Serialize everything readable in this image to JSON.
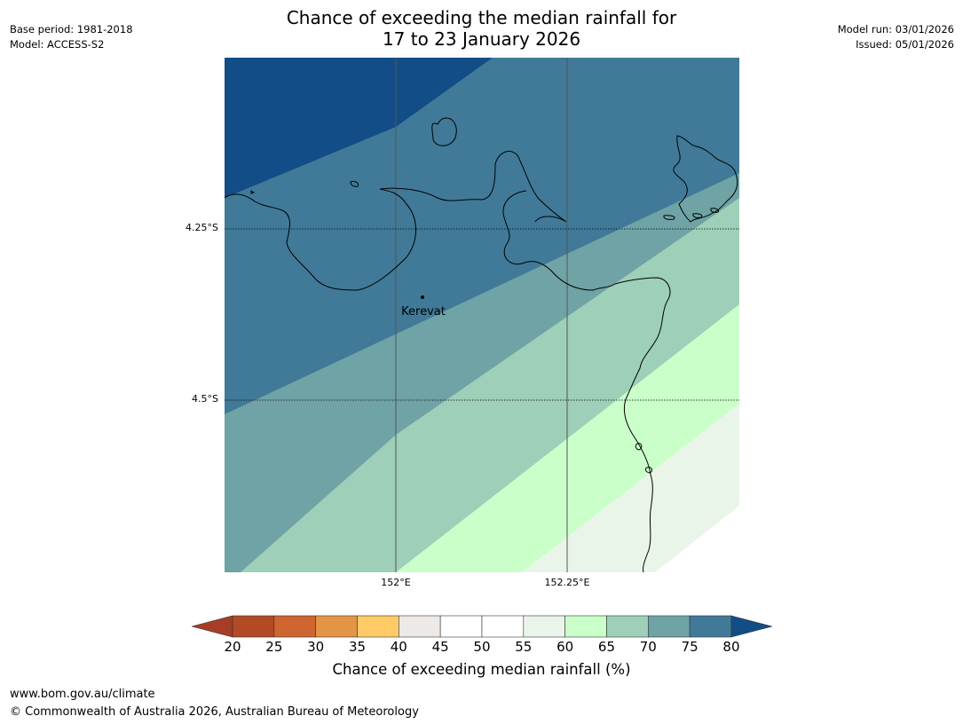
{
  "header": {
    "title_line1": "Chance of exceeding the median rainfall for",
    "title_line2": "17 to 23 January 2026",
    "base_period": "Base period: 1981-2018",
    "model": "Model: ACCESS-S2",
    "model_run": "Model run: 03/01/2026",
    "issued": "Issued: 05/01/2026"
  },
  "map": {
    "place_label": "Kerevat",
    "lat_labels": [
      "4.25°S",
      "4.5°S"
    ],
    "lon_labels": [
      "152°E",
      "152.25°E"
    ],
    "legend": {
      "bands": [
        {
          "range": "<20",
          "color": "#a63d27"
        },
        {
          "range": "20-25",
          "color": "#b24a25"
        },
        {
          "range": "25-30",
          "color": "#cf6530"
        },
        {
          "range": "30-35",
          "color": "#e39445"
        },
        {
          "range": "35-40",
          "color": "#ffcb66"
        },
        {
          "range": "40-45",
          "color": "#ede9e6"
        },
        {
          "range": "45-50",
          "color": "#ffffff"
        },
        {
          "range": "50-55",
          "color": "#ffffff"
        },
        {
          "range": "55-60",
          "color": "#eaf5ea"
        },
        {
          "range": "60-65",
          "color": "#caffca"
        },
        {
          "range": "65-70",
          "color": "#9ecfb8"
        },
        {
          "range": "70-75",
          "color": "#6fa3a5"
        },
        {
          "range": "75-80",
          "color": "#407a98"
        },
        {
          "range": ">80",
          "color": "#134d87"
        }
      ],
      "ticks": [
        "20",
        "25",
        "30",
        "35",
        "40",
        "45",
        "50",
        "55",
        "60",
        "65",
        "70",
        "75",
        "80"
      ],
      "title": "Chance of exceeding median rainfall (%)"
    }
  },
  "footer": {
    "url": "www.bom.gov.au/climate",
    "copyright": "© Commonwealth of Australia 2026, Australian Bureau of Meteorology"
  }
}
